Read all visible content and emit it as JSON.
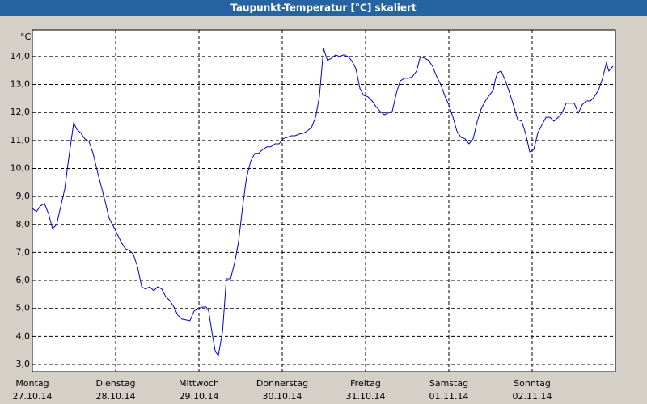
{
  "chart_data": {
    "type": "line",
    "title": "Taupunkt-Temperatur [°C] skaliert",
    "y_unit": "°C",
    "xlim": [
      0,
      168
    ],
    "ylim": [
      2.74,
      14.95
    ],
    "xticks": [
      {
        "value": 0,
        "label": "Montag"
      },
      {
        "value": 24,
        "label": "Dienstag"
      },
      {
        "value": 48,
        "label": "Mittwoch"
      },
      {
        "value": 72,
        "label": "Donnerstag"
      },
      {
        "value": 96,
        "label": "Freitag"
      },
      {
        "value": 120,
        "label": "Samstag"
      },
      {
        "value": 144,
        "label": "Sonntag"
      }
    ],
    "xtick_dates": [
      "27.10.14",
      "28.10.14",
      "29.10.14",
      "30.10.14",
      "31.10.14",
      "01.11.14",
      "02.11.14"
    ],
    "yticks": [
      {
        "value": 3,
        "label": "3,0"
      },
      {
        "value": 4,
        "label": "4,0"
      },
      {
        "value": 5,
        "label": "5,0"
      },
      {
        "value": 6,
        "label": "6,0"
      },
      {
        "value": 7,
        "label": "7,0"
      },
      {
        "value": 8,
        "label": "8,0"
      },
      {
        "value": 9,
        "label": "9,0"
      },
      {
        "value": 10,
        "label": "10,0"
      },
      {
        "value": 11,
        "label": "11,0"
      },
      {
        "value": 12,
        "label": "12,0"
      },
      {
        "value": 13,
        "label": "13,0"
      },
      {
        "value": 14,
        "label": "14,0"
      }
    ],
    "grid": true,
    "series": [
      {
        "name": "Taupunkt",
        "color": "#0000cc",
        "x": [
          0,
          1.2,
          2.3,
          3.5,
          4.7,
          5.8,
          7.0,
          8.2,
          9.3,
          10.5,
          11.9,
          12.8,
          14.0,
          15.1,
          16.3,
          17.5,
          18.6,
          19.8,
          21.0,
          22.1,
          23.3,
          24.5,
          25.6,
          26.8,
          28.0,
          29.1,
          30.3,
          31.5,
          32.6,
          33.8,
          35.0,
          36.1,
          37.3,
          38.4,
          39.6,
          40.8,
          41.9,
          43.1,
          44.3,
          45.4,
          46.6,
          47.8,
          48.9,
          50.1,
          50.8,
          51.7,
          52.7,
          53.6,
          54.8,
          55.9,
          57.1,
          58.3,
          59.4,
          60.6,
          61.7,
          62.9,
          64.1,
          65.2,
          66.4,
          67.6,
          68.7,
          69.9,
          71.1,
          72.2,
          73.4,
          74.6,
          75.7,
          76.9,
          78.1,
          79.2,
          80.4,
          81.6,
          82.7,
          83.9,
          85.0,
          86.2,
          87.4,
          88.5,
          89.7,
          90.9,
          92.0,
          93.2,
          94.4,
          95.5,
          96.7,
          97.9,
          99.0,
          100.2,
          101.4,
          102.5,
          103.7,
          104.9,
          106.0,
          107.2,
          108.3,
          109.5,
          110.7,
          111.8,
          113.0,
          114.2,
          115.3,
          116.5,
          117.7,
          118.8,
          120.0,
          121.2,
          122.3,
          123.5,
          124.7,
          125.8,
          127.0,
          128.2,
          129.3,
          130.5,
          131.6,
          132.8,
          133.3,
          134.0,
          135.1,
          136.3,
          137.5,
          138.6,
          139.8,
          141.0,
          142.1,
          143.3,
          144.5,
          145.6,
          146.8,
          148.0,
          149.1,
          150.3,
          151.5,
          152.6,
          153.8,
          154.9,
          156.1,
          157.3,
          158.4,
          159.6,
          160.8,
          161.9,
          163.1,
          164.3,
          165.4,
          166.1,
          167.3
        ],
        "values": [
          8.57,
          8.46,
          8.66,
          8.75,
          8.37,
          7.85,
          7.99,
          8.66,
          9.24,
          10.39,
          11.63,
          11.4,
          11.26,
          11.06,
          10.97,
          10.54,
          9.96,
          9.38,
          8.81,
          8.23,
          7.94,
          7.65,
          7.36,
          7.13,
          7.07,
          6.93,
          6.49,
          5.77,
          5.69,
          5.77,
          5.63,
          5.77,
          5.69,
          5.43,
          5.28,
          5.05,
          4.76,
          4.62,
          4.59,
          4.56,
          4.91,
          4.99,
          5.05,
          5.05,
          4.91,
          4.18,
          3.46,
          3.32,
          4.18,
          6.06,
          6.06,
          6.64,
          7.36,
          8.66,
          9.67,
          10.25,
          10.54,
          10.54,
          10.68,
          10.77,
          10.77,
          10.88,
          10.88,
          11.06,
          11.11,
          11.17,
          11.17,
          11.23,
          11.26,
          11.34,
          11.46,
          11.83,
          12.56,
          14.29,
          13.86,
          13.94,
          14.06,
          14.0,
          14.06,
          14.0,
          13.86,
          13.57,
          12.85,
          12.61,
          12.56,
          12.41,
          12.21,
          12.04,
          11.92,
          11.98,
          12.04,
          12.7,
          13.13,
          13.22,
          13.22,
          13.28,
          13.48,
          14.0,
          13.94,
          13.86,
          13.65,
          13.28,
          12.99,
          12.61,
          12.27,
          11.83,
          11.34,
          11.11,
          11.06,
          10.88,
          11.06,
          11.69,
          12.12,
          12.41,
          12.61,
          12.79,
          13.13,
          13.42,
          13.48,
          13.13,
          12.7,
          12.27,
          11.75,
          11.69,
          11.26,
          10.59,
          10.68,
          11.26,
          11.55,
          11.83,
          11.83,
          11.69,
          11.83,
          11.98,
          12.33,
          12.33,
          12.33,
          11.98,
          12.27,
          12.41,
          12.41,
          12.56,
          12.79,
          13.22,
          13.77,
          13.48,
          13.65
        ]
      }
    ]
  }
}
